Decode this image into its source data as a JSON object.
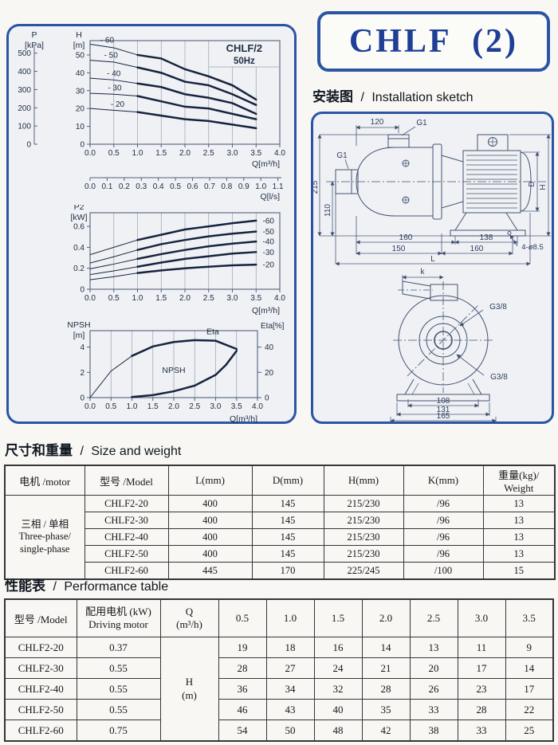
{
  "title_box": {
    "title": "CHLF  (2)"
  },
  "installation": {
    "heading_zh": "安装图",
    "heading_sep": "/",
    "heading_en": "Installation sketch",
    "dims": {
      "top_width": "120",
      "port_top": "G1",
      "port_inlet": "G1",
      "height_total": "215",
      "height_inlet": "110",
      "base_a": "160",
      "base_b": "138",
      "base_c": "150",
      "base_d": "160",
      "length_total": "L",
      "holes": "4-ø8.5",
      "motor_diameter": "D",
      "overall_height": "H",
      "bracket_width": "k",
      "port_front_top": "G3/8",
      "port_front_bottom": "G3/8",
      "front_base_inner": "108",
      "front_base_mid": "131",
      "front_base_outer": "165"
    }
  },
  "chart_data": [
    {
      "type": "line",
      "name": "head-flow",
      "title": "CHLF/2",
      "subtitle": "50Hz",
      "xlabel": "Q[m³/h]",
      "x2label": "Q[l/s]",
      "ylabel": [
        "H",
        "[m]"
      ],
      "y2label": [
        "P",
        "[kPa]"
      ],
      "xlim": [
        0,
        4
      ],
      "ylim": [
        0,
        58
      ],
      "xticks": [
        "0.0",
        "0.5",
        "1.0",
        "1.5",
        "2.0",
        "2.5",
        "3.0",
        "3.5",
        "4.0"
      ],
      "yticks": [
        0,
        10,
        20,
        30,
        40,
        50
      ],
      "y2ticks": [
        500,
        400,
        300,
        200,
        100,
        0
      ],
      "y2_to_y": 0.10197,
      "x2ticks": [
        "0.0",
        "0.1",
        "0.2",
        "0.3",
        "0.4",
        "0.5",
        "0.6",
        "0.7",
        "0.8",
        "0.9",
        "1.0",
        "1.1"
      ],
      "x2_to_x": 3.6,
      "grid": "vertical",
      "legend": "inline",
      "x": [
        0,
        0.5,
        1,
        1.5,
        2,
        2.5,
        3,
        3.5
      ],
      "series": [
        {
          "name": "- 60",
          "values": [
            56,
            54,
            50,
            48,
            42,
            38,
            33,
            25
          ],
          "bold_from": 1
        },
        {
          "name": "- 50",
          "values": [
            47,
            46,
            43,
            40,
            35,
            33,
            28,
            22
          ],
          "bold_from": 1
        },
        {
          "name": "- 40",
          "values": [
            37,
            36,
            34,
            32,
            28,
            26,
            23,
            17
          ],
          "bold_from": 1
        },
        {
          "name": "- 30",
          "values": [
            28.5,
            28,
            27,
            24,
            21,
            20,
            17,
            14
          ],
          "bold_from": 1
        },
        {
          "name": "- 20",
          "values": [
            20,
            19,
            18,
            16,
            14,
            13,
            11,
            9
          ],
          "bold_from": 1
        }
      ]
    },
    {
      "type": "line",
      "name": "power-flow",
      "xlabel": "Q[m³/h]",
      "ylabel": [
        "P2",
        "[kW]"
      ],
      "xlim": [
        0,
        4
      ],
      "ylim": [
        0,
        0.73
      ],
      "xticks": [
        "0.0",
        "0.5",
        "1.0",
        "1.5",
        "2.0",
        "2.5",
        "3.0",
        "3.5",
        "4.0"
      ],
      "yticks": [
        0,
        0.2,
        0.4,
        0.6
      ],
      "grid": "vertical",
      "legend": "right",
      "x": [
        0,
        0.5,
        1,
        1.5,
        2,
        2.5,
        3,
        3.5
      ],
      "series": [
        {
          "name": "-60",
          "values": [
            0.33,
            0.4,
            0.47,
            0.52,
            0.57,
            0.6,
            0.63,
            0.655
          ],
          "bold_from": 1
        },
        {
          "name": "-50",
          "values": [
            0.25,
            0.31,
            0.375,
            0.43,
            0.47,
            0.505,
            0.53,
            0.55
          ],
          "bold_from": 1
        },
        {
          "name": "-40",
          "values": [
            0.195,
            0.24,
            0.29,
            0.335,
            0.375,
            0.41,
            0.435,
            0.455
          ],
          "bold_from": 1
        },
        {
          "name": "-30",
          "values": [
            0.14,
            0.175,
            0.215,
            0.255,
            0.29,
            0.315,
            0.34,
            0.355
          ],
          "bold_from": 1
        },
        {
          "name": "-20",
          "values": [
            0.09,
            0.12,
            0.155,
            0.18,
            0.2,
            0.215,
            0.228,
            0.235
          ],
          "bold_from": 1
        }
      ]
    },
    {
      "type": "line",
      "name": "npsh-eta",
      "xlabel": "Q[m³/h]",
      "ylabel": [
        "NPSH",
        "[m]"
      ],
      "y2label": "Eta[%]",
      "xlim": [
        0,
        4
      ],
      "ylim": [
        0,
        5.3
      ],
      "xticks": [
        "0.0",
        "0.5",
        "1.0",
        "1.5",
        "2.0",
        "2.5",
        "3.0",
        "3.5",
        "4.0"
      ],
      "yticks": [
        0,
        2,
        4
      ],
      "y2ticks": [
        40,
        20,
        0
      ],
      "y2_to_y": 0.1,
      "grid": "vertical",
      "legend": "inline",
      "series": [
        {
          "name": "Eta",
          "x": [
            0,
            0.5,
            1,
            1.5,
            2,
            2.5,
            3,
            3.5
          ],
          "values": [
            0,
            21,
            33,
            40.5,
            44,
            45.5,
            45,
            38.5
          ],
          "axis": "y2",
          "bold_from": 1
        },
        {
          "name": "NPSH",
          "x": [
            1,
            1.5,
            2,
            2.5,
            3,
            3.25,
            3.5
          ],
          "values": [
            0.05,
            0.2,
            0.5,
            0.95,
            1.8,
            2.6,
            3.7
          ],
          "bold_from": 1
        }
      ]
    }
  ],
  "size_table": {
    "heading_zh": "尺寸和重量",
    "heading_sep": "/",
    "heading_en": "Size and weight",
    "columns": [
      "电机 /motor",
      "型号 /Model",
      "L(mm)",
      "D(mm)",
      "H(mm)",
      "K(mm)",
      "重量(kg)/ Weight"
    ],
    "motor_group": [
      "三相 / 单相",
      "Three-phase/",
      "single-phase"
    ],
    "rows": [
      {
        "model": "CHLF2-20",
        "L": "400",
        "D": "145",
        "H": "215/230",
        "K": "/96",
        "weight": "13"
      },
      {
        "model": "CHLF2-30",
        "L": "400",
        "D": "145",
        "H": "215/230",
        "K": "/96",
        "weight": "13"
      },
      {
        "model": "CHLF2-40",
        "L": "400",
        "D": "145",
        "H": "215/230",
        "K": "/96",
        "weight": "13"
      },
      {
        "model": "CHLF2-50",
        "L": "400",
        "D": "145",
        "H": "215/230",
        "K": "/96",
        "weight": "13"
      },
      {
        "model": "CHLF2-60",
        "L": "445",
        "D": "170",
        "H": "225/245",
        "K": "/100",
        "weight": "15"
      }
    ]
  },
  "performance_table": {
    "heading_zh": "性能表",
    "heading_sep": "/",
    "heading_en": "Performance table",
    "col_model": "型号 /Model",
    "col_motor": [
      "配用电机 (kW)",
      "Driving motor"
    ],
    "col_q": [
      "Q",
      "(m³/h)"
    ],
    "q_values": [
      "0.5",
      "1.0",
      "1.5",
      "2.0",
      "2.5",
      "3.0",
      "3.5"
    ],
    "h_cell": [
      "H",
      "(m)"
    ],
    "rows": [
      {
        "model": "CHLF2-20",
        "motor": "0.37",
        "values": [
          "19",
          "18",
          "16",
          "14",
          "13",
          "11",
          "9"
        ]
      },
      {
        "model": "CHLF2-30",
        "motor": "0.55",
        "values": [
          "28",
          "27",
          "24",
          "21",
          "20",
          "17",
          "14"
        ]
      },
      {
        "model": "CHLF2-40",
        "motor": "0.55",
        "values": [
          "36",
          "34",
          "32",
          "28",
          "26",
          "23",
          "17"
        ]
      },
      {
        "model": "CHLF2-50",
        "motor": "0.55",
        "values": [
          "46",
          "43",
          "40",
          "35",
          "33",
          "28",
          "22"
        ]
      },
      {
        "model": "CHLF2-60",
        "motor": "0.75",
        "values": [
          "54",
          "50",
          "48",
          "42",
          "38",
          "33",
          "25"
        ]
      }
    ]
  }
}
